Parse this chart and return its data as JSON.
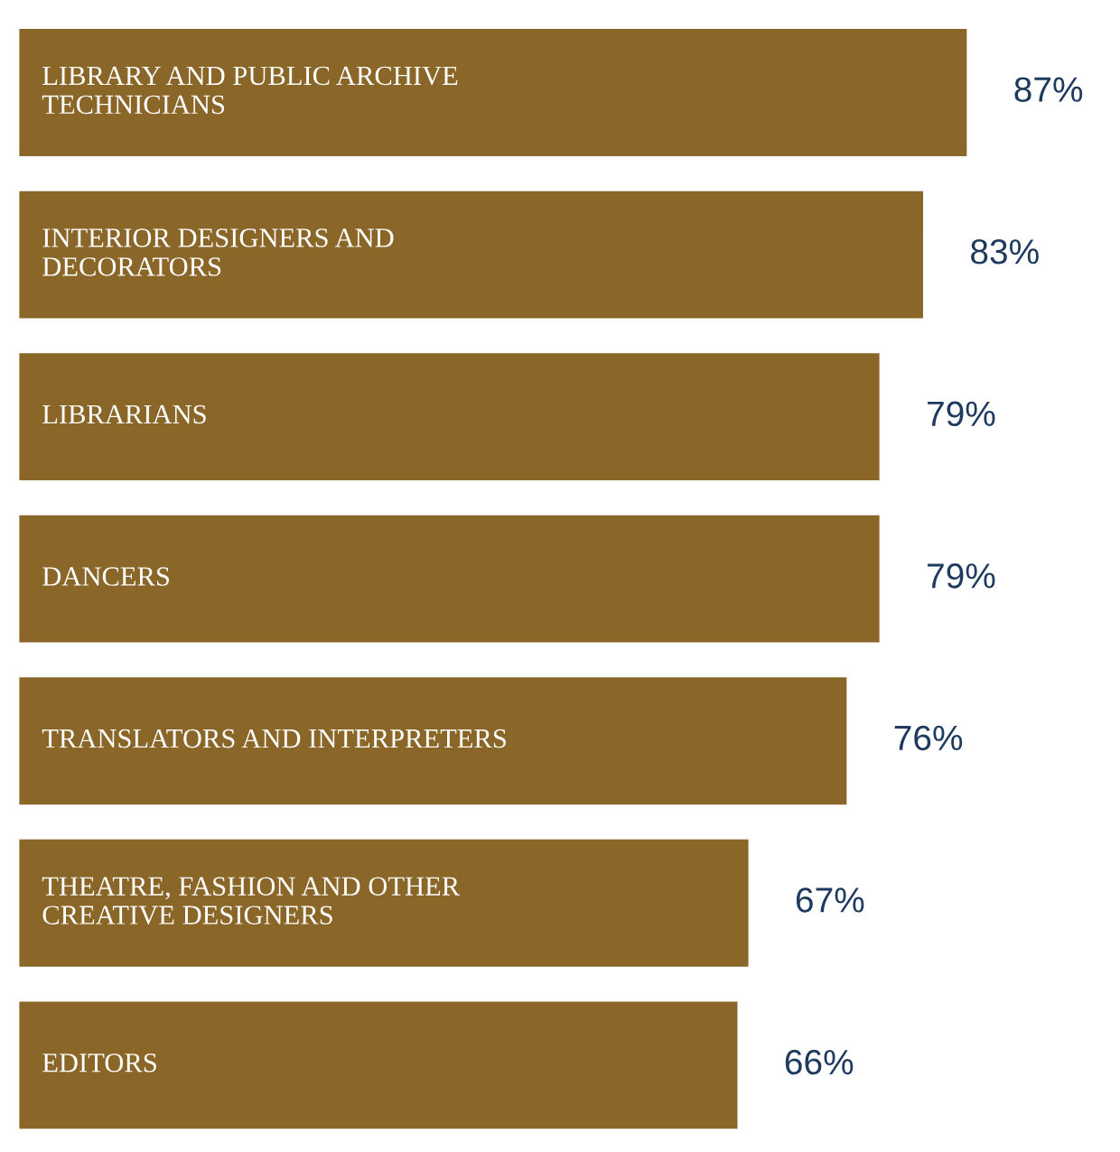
{
  "chart_data": {
    "type": "bar",
    "orientation": "horizontal",
    "categories": [
      "LIBRARY AND PUBLIC ARCHIVE\nTECHNICIANS",
      "INTERIOR DESIGNERS AND\nDECORATORS",
      "LIBRARIANS",
      "DANCERS",
      "TRANSLATORS AND INTERPRETERS",
      "THEATRE, FASHION AND OTHER\nCREATIVE DESIGNERS",
      "EDITORS"
    ],
    "values": [
      87,
      83,
      79,
      79,
      76,
      67,
      66
    ],
    "value_labels": [
      "87%",
      "83%",
      "79%",
      "79%",
      "76%",
      "67%",
      "66%"
    ],
    "color": "#8a6629"
  }
}
